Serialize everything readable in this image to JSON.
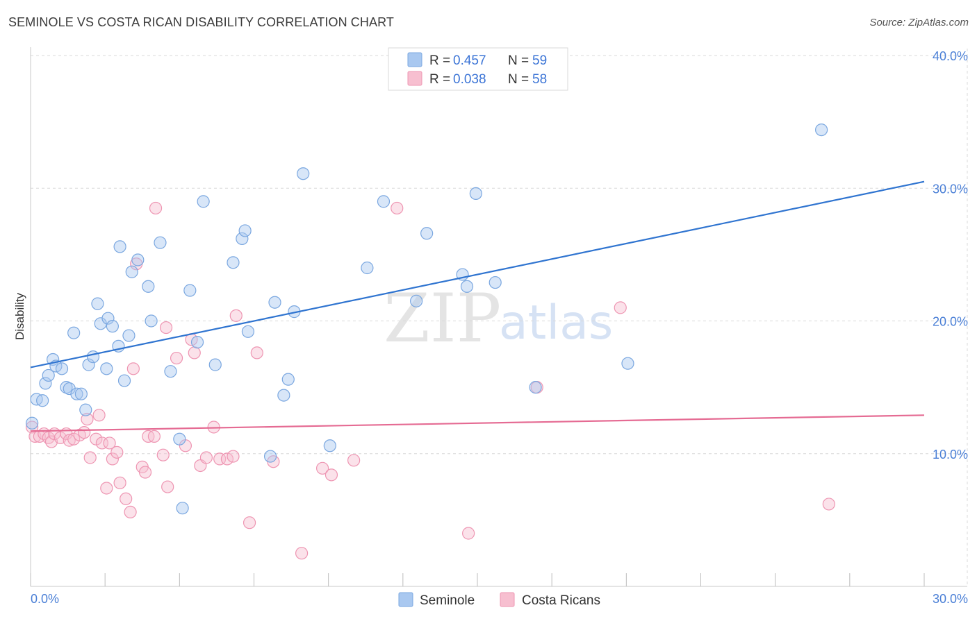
{
  "title": "SEMINOLE VS COSTA RICAN DISABILITY CORRELATION CHART",
  "source": "Source: ZipAtlas.com",
  "watermark": {
    "zip": "ZIP",
    "atlas": "atlas"
  },
  "colors": {
    "blue_fill": "#a9c8f0",
    "blue_stroke": "#7aa7e0",
    "blue_line": "#2f74d0",
    "pink_fill": "#f7bfd0",
    "pink_stroke": "#ee95b2",
    "pink_line": "#e56b93",
    "grid": "#d8d8d8",
    "tick_label": "#4a7fd6"
  },
  "legend": {
    "rows": [
      {
        "r_label": "R = ",
        "r_value": "0.457",
        "n_label": "N = ",
        "n_value": "59"
      },
      {
        "r_label": "R = ",
        "r_value": "0.038",
        "n_label": "N = ",
        "n_value": "58"
      }
    ]
  },
  "bottom_legend": {
    "seminole": "Seminole",
    "costa_ricans": "Costa Ricans"
  },
  "chart_data": {
    "type": "scatter",
    "title": "SEMINOLE VS COSTA RICAN DISABILITY CORRELATION CHART",
    "xlabel": "",
    "ylabel": "Disability",
    "xlim": [
      0,
      30
    ],
    "ylim": [
      0,
      40
    ],
    "x_tick_labels": [
      "0.0%",
      "30.0%"
    ],
    "y_ticks": [
      10,
      20,
      30,
      40
    ],
    "y_tick_labels": [
      "10.0%",
      "20.0%",
      "30.0%",
      "40.0%"
    ],
    "series": [
      {
        "name": "Seminole",
        "r": 0.457,
        "n": 59,
        "trend": {
          "x": [
            0,
            30
          ],
          "y": [
            16.5,
            30.5
          ]
        },
        "points": [
          [
            0.05,
            12.3
          ],
          [
            0.2,
            14.1
          ],
          [
            0.4,
            14.0
          ],
          [
            0.5,
            15.3
          ],
          [
            0.6,
            15.9
          ],
          [
            0.75,
            17.1
          ],
          [
            0.85,
            16.6
          ],
          [
            1.05,
            16.4
          ],
          [
            1.2,
            15.0
          ],
          [
            1.3,
            14.9
          ],
          [
            1.45,
            19.1
          ],
          [
            1.55,
            14.5
          ],
          [
            1.7,
            14.5
          ],
          [
            1.85,
            13.3
          ],
          [
            1.95,
            16.7
          ],
          [
            2.1,
            17.3
          ],
          [
            2.25,
            21.3
          ],
          [
            2.35,
            19.8
          ],
          [
            2.55,
            16.4
          ],
          [
            2.6,
            20.2
          ],
          [
            2.75,
            19.6
          ],
          [
            2.95,
            18.1
          ],
          [
            3.0,
            25.6
          ],
          [
            3.15,
            15.5
          ],
          [
            3.3,
            18.9
          ],
          [
            3.4,
            23.7
          ],
          [
            3.6,
            24.6
          ],
          [
            3.95,
            22.6
          ],
          [
            4.05,
            20.0
          ],
          [
            4.35,
            25.9
          ],
          [
            4.7,
            16.2
          ],
          [
            5.0,
            11.1
          ],
          [
            5.1,
            5.9
          ],
          [
            5.35,
            22.3
          ],
          [
            5.6,
            18.4
          ],
          [
            5.8,
            29.0
          ],
          [
            6.2,
            16.7
          ],
          [
            6.8,
            24.4
          ],
          [
            7.1,
            26.2
          ],
          [
            7.2,
            26.8
          ],
          [
            7.3,
            19.2
          ],
          [
            8.05,
            9.8
          ],
          [
            8.2,
            21.4
          ],
          [
            8.5,
            14.4
          ],
          [
            8.65,
            15.6
          ],
          [
            8.85,
            20.7
          ],
          [
            9.15,
            31.1
          ],
          [
            10.05,
            10.6
          ],
          [
            11.3,
            24.0
          ],
          [
            11.85,
            29.0
          ],
          [
            12.95,
            21.5
          ],
          [
            13.3,
            26.6
          ],
          [
            14.5,
            23.5
          ],
          [
            14.65,
            22.6
          ],
          [
            14.95,
            29.6
          ],
          [
            15.6,
            22.9
          ],
          [
            16.95,
            15.0
          ],
          [
            20.05,
            16.8
          ],
          [
            26.55,
            34.4
          ]
        ]
      },
      {
        "name": "Costa Ricans",
        "r": 0.038,
        "n": 58,
        "trend": {
          "x": [
            0,
            30
          ],
          "y": [
            11.7,
            12.9
          ]
        },
        "points": [
          [
            0.05,
            12.0
          ],
          [
            0.15,
            11.3
          ],
          [
            0.3,
            11.3
          ],
          [
            0.45,
            11.5
          ],
          [
            0.6,
            11.2
          ],
          [
            0.7,
            10.9
          ],
          [
            0.8,
            11.5
          ],
          [
            1.0,
            11.2
          ],
          [
            1.2,
            11.5
          ],
          [
            1.3,
            11.0
          ],
          [
            1.45,
            11.1
          ],
          [
            1.65,
            11.4
          ],
          [
            1.8,
            11.6
          ],
          [
            1.9,
            12.6
          ],
          [
            2.0,
            9.7
          ],
          [
            2.2,
            11.1
          ],
          [
            2.3,
            12.9
          ],
          [
            2.4,
            10.8
          ],
          [
            2.55,
            7.4
          ],
          [
            2.65,
            10.8
          ],
          [
            2.75,
            9.6
          ],
          [
            2.9,
            10.1
          ],
          [
            3.0,
            7.8
          ],
          [
            3.2,
            6.6
          ],
          [
            3.35,
            5.6
          ],
          [
            3.45,
            16.4
          ],
          [
            3.55,
            24.3
          ],
          [
            3.75,
            9.0
          ],
          [
            3.85,
            8.6
          ],
          [
            3.95,
            11.3
          ],
          [
            4.15,
            11.3
          ],
          [
            4.2,
            28.5
          ],
          [
            4.45,
            9.9
          ],
          [
            4.55,
            19.5
          ],
          [
            4.6,
            7.5
          ],
          [
            4.9,
            17.2
          ],
          [
            5.2,
            10.6
          ],
          [
            5.4,
            18.6
          ],
          [
            5.5,
            17.6
          ],
          [
            5.7,
            9.1
          ],
          [
            5.9,
            9.7
          ],
          [
            6.15,
            12.0
          ],
          [
            6.35,
            9.6
          ],
          [
            6.6,
            9.6
          ],
          [
            6.8,
            9.8
          ],
          [
            6.9,
            20.4
          ],
          [
            7.35,
            4.8
          ],
          [
            7.6,
            17.6
          ],
          [
            8.15,
            9.4
          ],
          [
            9.1,
            2.5
          ],
          [
            9.8,
            8.9
          ],
          [
            10.1,
            8.4
          ],
          [
            10.85,
            9.5
          ],
          [
            12.3,
            28.5
          ],
          [
            14.7,
            4.0
          ],
          [
            17.0,
            15.0
          ],
          [
            19.8,
            21.0
          ],
          [
            26.8,
            6.2
          ]
        ]
      }
    ]
  }
}
